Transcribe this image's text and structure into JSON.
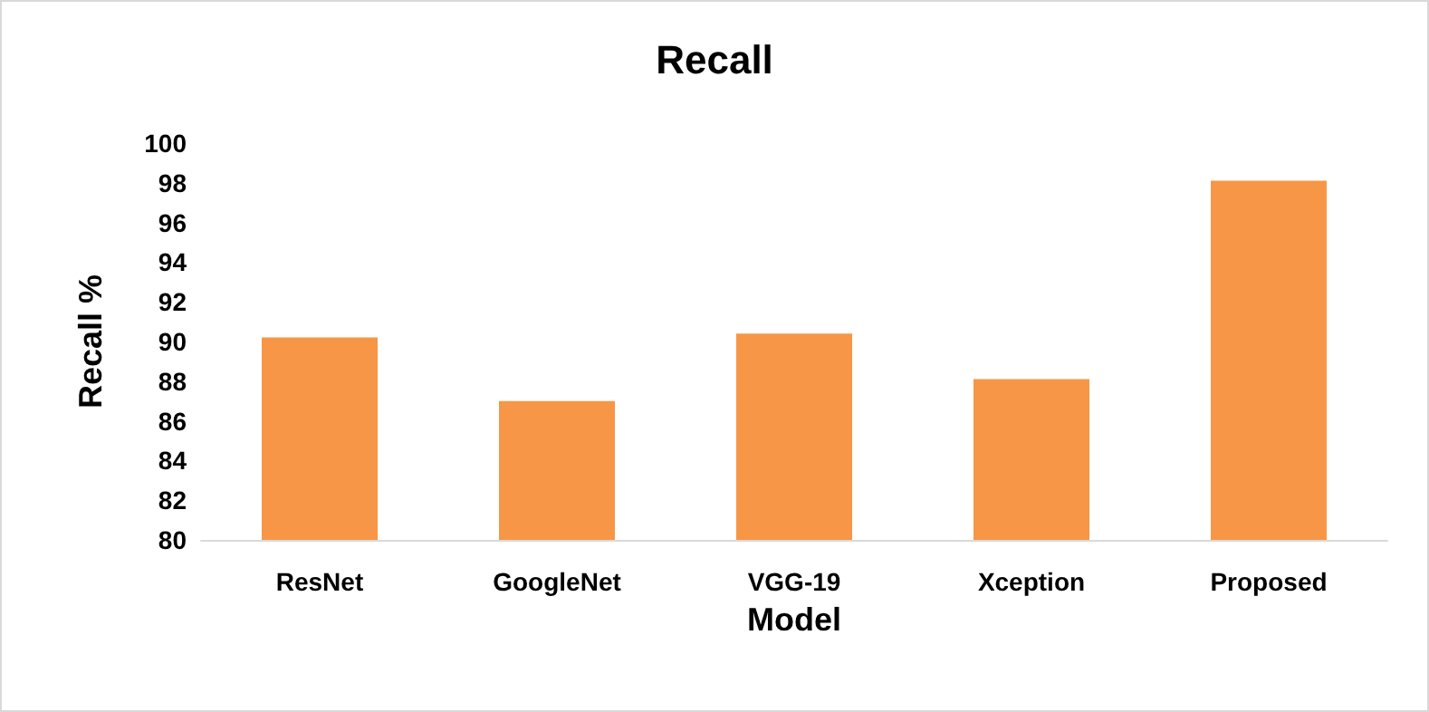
{
  "chart_data": {
    "type": "bar",
    "title": "Recall",
    "xlabel": "Model",
    "ylabel": "Recall %",
    "categories": [
      "ResNet",
      "GoogleNet",
      "VGG-19",
      "Xception",
      "Proposed"
    ],
    "values": [
      90.2,
      87.0,
      90.4,
      88.1,
      98.1
    ],
    "color": "#f79646",
    "ylim": [
      80,
      100
    ],
    "yticks": [
      80,
      82,
      84,
      86,
      88,
      90,
      92,
      94,
      96,
      98,
      100
    ],
    "grid": false
  }
}
